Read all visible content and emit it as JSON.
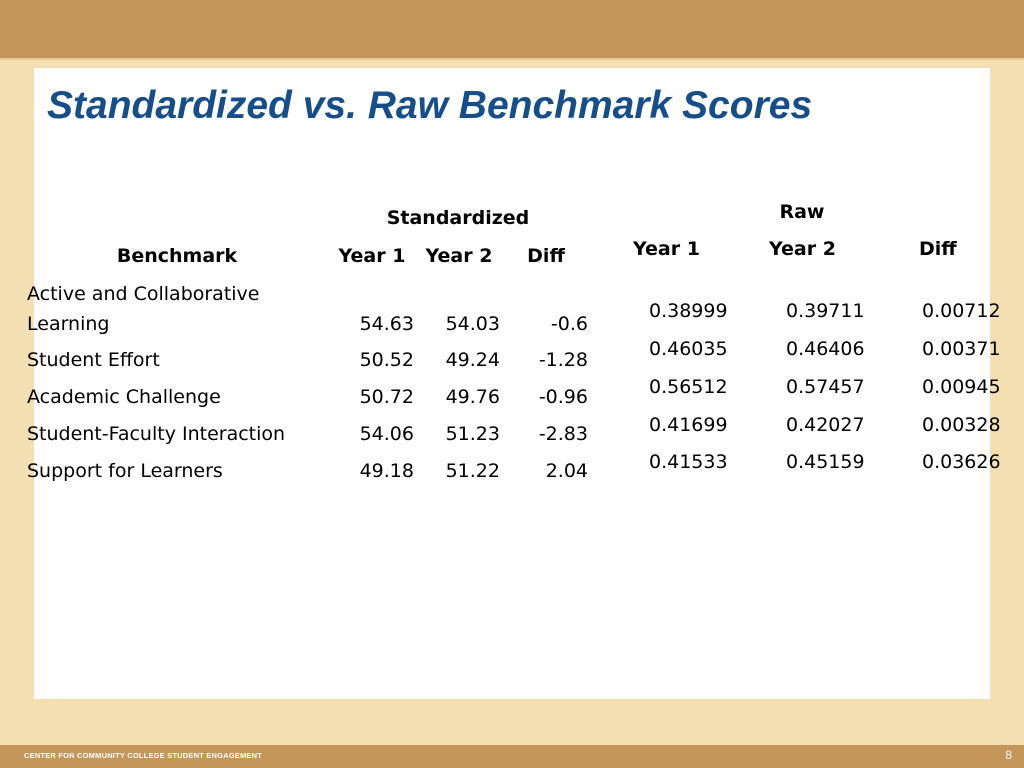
{
  "title": "Standardized vs. Raw Benchmark Scores",
  "footer": {
    "org": "CENTER FOR COMMUNITY COLLEGE STUDENT ENGAGEMENT",
    "page": "8"
  },
  "standardized": {
    "group_label": "Standardized",
    "headers": {
      "benchmark": "Benchmark",
      "year1": "Year 1",
      "year2": "Year 2",
      "diff": "Diff"
    },
    "rows": [
      {
        "benchmark": "Active and Collaborative Learning",
        "year1": "54.63",
        "year2": "54.03",
        "diff": "-0.6"
      },
      {
        "benchmark": "Student Effort",
        "year1": "50.52",
        "year2": "49.24",
        "diff": "-1.28"
      },
      {
        "benchmark": "Academic Challenge",
        "year1": "50.72",
        "year2": "49.76",
        "diff": "-0.96"
      },
      {
        "benchmark": "Student-Faculty Interaction",
        "year1": "54.06",
        "year2": "51.23",
        "diff": "-2.83"
      },
      {
        "benchmark": "Support for Learners",
        "year1": "49.18",
        "year2": "51.22",
        "diff": "2.04"
      }
    ]
  },
  "raw": {
    "group_label": "Raw",
    "headers": {
      "year1": "Year 1",
      "year2": "Year 2",
      "diff": "Diff"
    },
    "rows": [
      {
        "year1": "0.38999",
        "year2": "0.39711",
        "diff": "0.00712"
      },
      {
        "year1": "0.46035",
        "year2": "0.46406",
        "diff": "0.00371"
      },
      {
        "year1": "0.56512",
        "year2": "0.57457",
        "diff": "0.00945"
      },
      {
        "year1": "0.41699",
        "year2": "0.42027",
        "diff": "0.00328"
      },
      {
        "year1": "0.41533",
        "year2": "0.45159",
        "diff": "0.03626"
      }
    ]
  }
}
